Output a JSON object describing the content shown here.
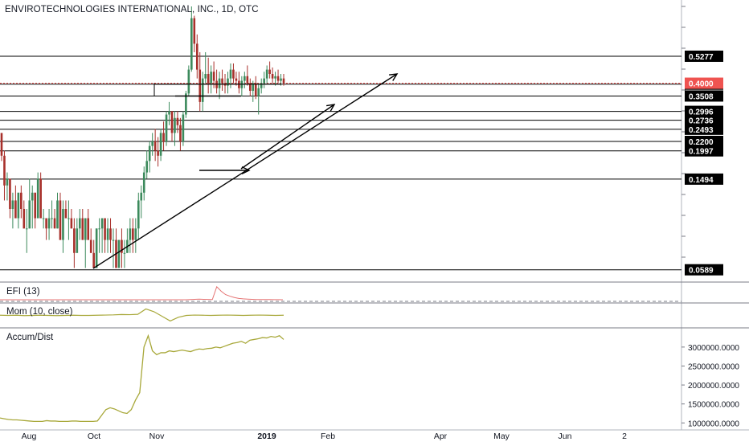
{
  "header": {
    "title": "ENVIROTECHNOLOGIES INTERNATIONAL, INC., 1D, OTC"
  },
  "panes": {
    "efi_label": "EFI (13)",
    "mom_label": "Mom (10, close)",
    "ad_label": "Accum/Dist"
  },
  "colors": {
    "up": "#26a69a",
    "down": "#ef5350",
    "up_dark": "#3c8a5c",
    "down_dark": "#a8302b",
    "line": "#000000",
    "indicator": "#a8a83a",
    "efi": "#e57373",
    "current": "#ef5350"
  },
  "chart_data": [
    {
      "type": "candlestick",
      "title": "ENVIROTECHNOLOGIES INTERNATIONAL, INC., 1D, OTC",
      "x_tick_labels": [
        "Aug",
        "Oct",
        "Nov",
        "2019",
        "Feb",
        "Apr",
        "May",
        "Jun",
        "2"
      ],
      "horizontal_levels": [
        0.5277,
        0.3962,
        0.3508,
        0.2996,
        0.2736,
        0.2493,
        0.22,
        0.1997,
        0.1494,
        0.0589
      ],
      "current_price": 0.4,
      "ylim": [
        0.055,
        0.88
      ],
      "candles": [
        [
          0.24,
          0.24,
          0.18,
          0.19
        ],
        [
          0.19,
          0.2,
          0.12,
          0.14
        ],
        [
          0.14,
          0.16,
          0.12,
          0.15
        ],
        [
          0.15,
          0.15,
          0.1,
          0.11
        ],
        [
          0.11,
          0.13,
          0.09,
          0.12
        ],
        [
          0.12,
          0.14,
          0.1,
          0.1
        ],
        [
          0.1,
          0.13,
          0.09,
          0.13
        ],
        [
          0.13,
          0.14,
          0.1,
          0.11
        ],
        [
          0.11,
          0.12,
          0.09,
          0.09
        ],
        [
          0.09,
          0.11,
          0.07,
          0.09
        ],
        [
          0.09,
          0.15,
          0.09,
          0.12
        ],
        [
          0.12,
          0.14,
          0.09,
          0.13
        ],
        [
          0.13,
          0.13,
          0.09,
          0.1
        ],
        [
          0.1,
          0.16,
          0.1,
          0.15
        ],
        [
          0.15,
          0.16,
          0.1,
          0.1
        ],
        [
          0.1,
          0.11,
          0.09,
          0.1
        ],
        [
          0.1,
          0.1,
          0.08,
          0.09
        ],
        [
          0.09,
          0.11,
          0.08,
          0.1
        ],
        [
          0.1,
          0.12,
          0.09,
          0.1
        ],
        [
          0.1,
          0.11,
          0.09,
          0.09
        ],
        [
          0.09,
          0.13,
          0.09,
          0.12
        ],
        [
          0.12,
          0.13,
          0.08,
          0.08
        ],
        [
          0.08,
          0.12,
          0.07,
          0.11
        ],
        [
          0.11,
          0.12,
          0.1,
          0.1
        ],
        [
          0.1,
          0.12,
          0.08,
          0.1
        ],
        [
          0.1,
          0.11,
          0.09,
          0.09
        ],
        [
          0.09,
          0.1,
          0.06,
          0.07
        ],
        [
          0.07,
          0.1,
          0.07,
          0.09
        ],
        [
          0.09,
          0.11,
          0.08,
          0.1
        ],
        [
          0.1,
          0.11,
          0.08,
          0.08
        ],
        [
          0.08,
          0.1,
          0.06,
          0.1
        ],
        [
          0.1,
          0.11,
          0.08,
          0.08
        ],
        [
          0.08,
          0.09,
          0.07,
          0.07
        ],
        [
          0.07,
          0.08,
          0.06,
          0.06
        ],
        [
          0.06,
          0.09,
          0.06,
          0.09
        ],
        [
          0.09,
          0.1,
          0.07,
          0.09
        ],
        [
          0.09,
          0.1,
          0.07,
          0.1
        ],
        [
          0.1,
          0.1,
          0.07,
          0.08
        ],
        [
          0.08,
          0.1,
          0.07,
          0.09
        ],
        [
          0.09,
          0.1,
          0.07,
          0.08
        ],
        [
          0.08,
          0.09,
          0.06,
          0.08
        ],
        [
          0.08,
          0.09,
          0.06,
          0.06
        ],
        [
          0.06,
          0.08,
          0.06,
          0.08
        ],
        [
          0.08,
          0.09,
          0.06,
          0.07
        ],
        [
          0.07,
          0.08,
          0.06,
          0.07
        ],
        [
          0.07,
          0.09,
          0.07,
          0.08
        ],
        [
          0.08,
          0.1,
          0.07,
          0.09
        ],
        [
          0.09,
          0.1,
          0.07,
          0.08
        ],
        [
          0.08,
          0.1,
          0.07,
          0.09
        ],
        [
          0.09,
          0.13,
          0.08,
          0.12
        ],
        [
          0.12,
          0.14,
          0.1,
          0.13
        ],
        [
          0.13,
          0.17,
          0.12,
          0.16
        ],
        [
          0.16,
          0.2,
          0.15,
          0.18
        ],
        [
          0.18,
          0.22,
          0.16,
          0.21
        ],
        [
          0.21,
          0.24,
          0.19,
          0.22
        ],
        [
          0.22,
          0.25,
          0.18,
          0.2
        ],
        [
          0.2,
          0.23,
          0.17,
          0.19
        ],
        [
          0.19,
          0.25,
          0.18,
          0.24
        ],
        [
          0.24,
          0.27,
          0.2,
          0.22
        ],
        [
          0.22,
          0.3,
          0.21,
          0.29
        ],
        [
          0.29,
          0.33,
          0.26,
          0.3
        ],
        [
          0.3,
          0.3,
          0.22,
          0.24
        ],
        [
          0.24,
          0.3,
          0.21,
          0.28
        ],
        [
          0.28,
          0.3,
          0.24,
          0.26
        ],
        [
          0.26,
          0.28,
          0.2,
          0.22
        ],
        [
          0.22,
          0.3,
          0.21,
          0.29
        ],
        [
          0.29,
          0.37,
          0.28,
          0.36
        ],
        [
          0.36,
          0.48,
          0.35,
          0.46
        ],
        [
          0.46,
          0.88,
          0.45,
          0.78
        ],
        [
          0.78,
          0.8,
          0.55,
          0.6
        ],
        [
          0.6,
          0.66,
          0.42,
          0.46
        ],
        [
          0.46,
          0.55,
          0.3,
          0.33
        ],
        [
          0.33,
          0.45,
          0.3,
          0.42
        ],
        [
          0.42,
          0.55,
          0.4,
          0.44
        ],
        [
          0.44,
          0.52,
          0.36,
          0.4
        ],
        [
          0.4,
          0.48,
          0.36,
          0.45
        ],
        [
          0.45,
          0.5,
          0.38,
          0.41
        ],
        [
          0.41,
          0.46,
          0.36,
          0.38
        ],
        [
          0.38,
          0.45,
          0.34,
          0.42
        ],
        [
          0.42,
          0.46,
          0.37,
          0.4
        ],
        [
          0.4,
          0.44,
          0.36,
          0.39
        ],
        [
          0.39,
          0.45,
          0.36,
          0.42
        ],
        [
          0.42,
          0.49,
          0.38,
          0.46
        ],
        [
          0.46,
          0.49,
          0.4,
          0.42
        ],
        [
          0.42,
          0.45,
          0.39,
          0.41
        ],
        [
          0.41,
          0.45,
          0.36,
          0.38
        ],
        [
          0.38,
          0.43,
          0.35,
          0.41
        ],
        [
          0.41,
          0.45,
          0.38,
          0.43
        ],
        [
          0.43,
          0.48,
          0.39,
          0.4
        ],
        [
          0.4,
          0.42,
          0.35,
          0.37
        ],
        [
          0.37,
          0.41,
          0.33,
          0.4
        ],
        [
          0.4,
          0.43,
          0.34,
          0.35
        ],
        [
          0.35,
          0.4,
          0.29,
          0.38
        ],
        [
          0.38,
          0.42,
          0.36,
          0.4
        ],
        [
          0.4,
          0.45,
          0.38,
          0.42
        ],
        [
          0.42,
          0.48,
          0.4,
          0.46
        ],
        [
          0.46,
          0.5,
          0.42,
          0.44
        ],
        [
          0.44,
          0.47,
          0.4,
          0.42
        ],
        [
          0.42,
          0.45,
          0.39,
          0.43
        ],
        [
          0.43,
          0.46,
          0.4,
          0.41
        ],
        [
          0.41,
          0.44,
          0.39,
          0.42
        ],
        [
          0.42,
          0.44,
          0.39,
          0.4
        ]
      ]
    },
    {
      "type": "line",
      "title": "EFI (13)",
      "series": [
        {
          "values": [
            0.2,
            0.2,
            0.2,
            0.2,
            0.2,
            0.2,
            0.2,
            0.2,
            0.2,
            0.2,
            0.2,
            0.2,
            0.2,
            0.2,
            0.3,
            0.4,
            0.5,
            0.4,
            0.35,
            0.3,
            6,
            4,
            2.5,
            1.8,
            1.2,
            0.8,
            0.6,
            0.5,
            0.4,
            0.3,
            0.3,
            0.3,
            0.3,
            0.25,
            0.25,
            0.2
          ]
        }
      ],
      "ylim": [
        -0.5,
        7
      ]
    },
    {
      "type": "line",
      "title": "Mom (10, close)",
      "series": [
        {
          "values": [
            0.01,
            0,
            0.01,
            -0.01,
            0,
            0.01,
            0,
            -0.01,
            0,
            0.01,
            0,
            0,
            0.01,
            0.02,
            0.03,
            0.05,
            0.04,
            0.06,
            0.35,
            0.2,
            -0.05,
            -0.3,
            -0.1,
            0,
            0.02,
            0.01,
            0,
            0.01,
            0.02,
            0.01,
            0,
            0.01,
            0.02,
            0.01,
            0,
            0.01
          ]
        }
      ],
      "ylim": [
        -0.5,
        0.5
      ]
    },
    {
      "type": "line",
      "title": "Accum/Dist",
      "y_tick_labels": [
        "3000000.0000",
        "2500000.0000",
        "2000000.0000",
        "1500000.0000",
        "1000000.0000"
      ],
      "ylim": [
        900000,
        3400000
      ],
      "series": [
        {
          "values": [
            1130000,
            1110000,
            1090000,
            1080000,
            1080000,
            1070000,
            1060000,
            1050000,
            1040000,
            1040000,
            1040000,
            1060000,
            1050000,
            1050000,
            1040000,
            1040000,
            1040000,
            1050000,
            1050000,
            1040000,
            1040000,
            1040000,
            1040000,
            1050000,
            1200000,
            1350000,
            1400000,
            1370000,
            1320000,
            1270000,
            1250000,
            1350000,
            1600000,
            1800000,
            3000000,
            3300000,
            2900000,
            2800000,
            2850000,
            2850000,
            2900000,
            2880000,
            2900000,
            2920000,
            2900000,
            2880000,
            2920000,
            2950000,
            2940000,
            2960000,
            2970000,
            3000000,
            2980000,
            3020000,
            3060000,
            3100000,
            3120000,
            3150000,
            3100000,
            3180000,
            3200000,
            3220000,
            3250000,
            3240000,
            3280000,
            3260000,
            3300000,
            3200000
          ]
        }
      ]
    }
  ]
}
